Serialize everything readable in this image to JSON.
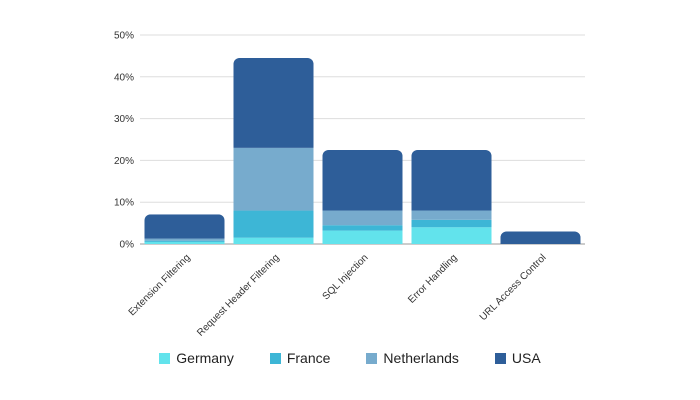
{
  "chart_data": {
    "type": "bar",
    "stacked": true,
    "categories": [
      "Extension Filtering",
      "Request Header Filtering",
      "SQL Injection",
      "Error Handling",
      "URL Access Control"
    ],
    "series": [
      {
        "name": "Germany",
        "color": "#62e3ec",
        "values": [
          0.5,
          1.5,
          3.2,
          4.0,
          0.0
        ]
      },
      {
        "name": "France",
        "color": "#3db6d6",
        "values": [
          0.3,
          6.5,
          1.3,
          1.8,
          0.0
        ]
      },
      {
        "name": "Netherlands",
        "color": "#77abcd",
        "values": [
          0.5,
          15.0,
          3.5,
          2.2,
          0.0
        ]
      },
      {
        "name": "USA",
        "color": "#2e5e99",
        "values": [
          5.8,
          21.5,
          14.5,
          14.5,
          3.0
        ]
      }
    ],
    "yticks": [
      "0%",
      "10%",
      "20%",
      "30%",
      "40%",
      "50%"
    ],
    "ylim": [
      0,
      50
    ],
    "grid": true,
    "legend_position": "bottom"
  }
}
